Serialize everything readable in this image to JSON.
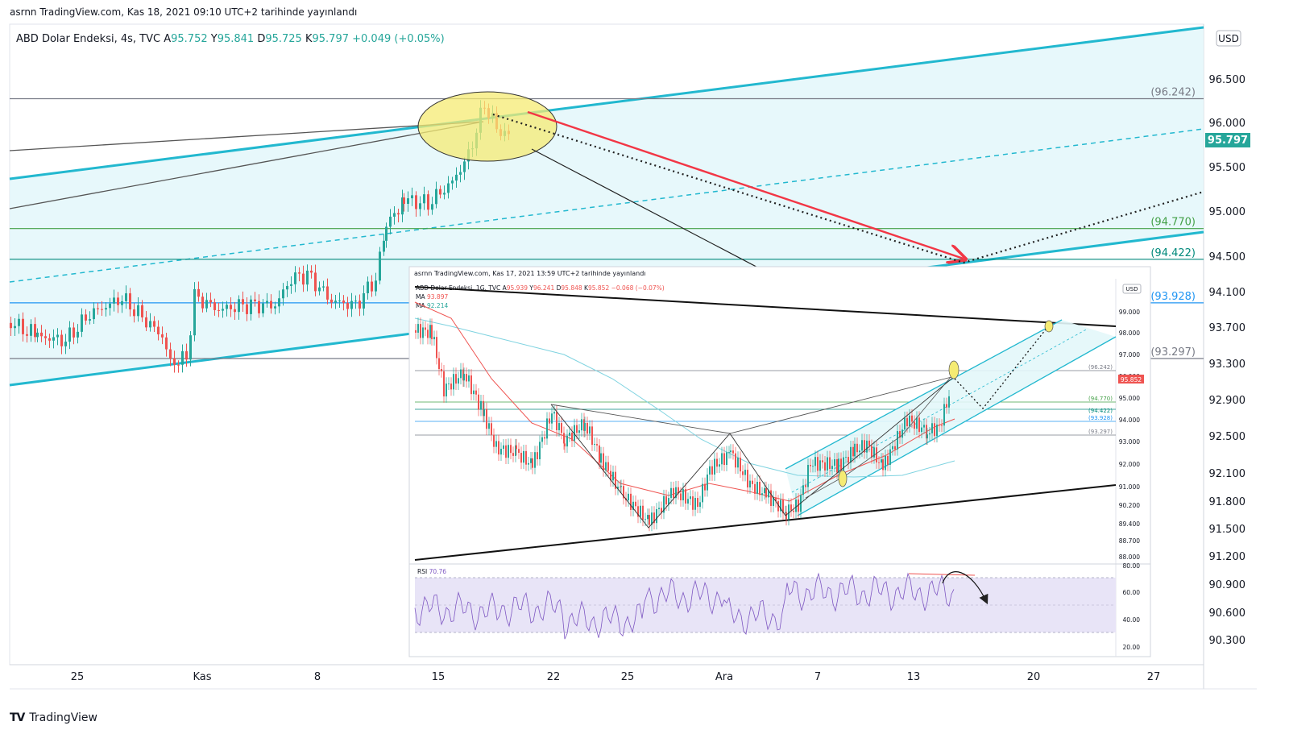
{
  "publish_line": "asrnn TradingView.com, Kas 18, 2021 09:10 UTC+2 tarihinde yayınlandı",
  "brand": {
    "logo": "TV",
    "name": "TradingView"
  },
  "chart_data": {
    "type": "candlestick",
    "legend": {
      "symbol": "ABD Dolar Endeksi, 4s, TVC",
      "values": [
        {
          "label": "A",
          "value": "95.752"
        },
        {
          "label": "Y",
          "value": "95.841"
        },
        {
          "label": "D",
          "value": "95.725"
        },
        {
          "label": "K",
          "value": "95.797"
        }
      ],
      "change": "+0.049 (+0.05%)"
    },
    "currency": "USD",
    "y_ticks": [
      "96.500",
      "96.000",
      "95.500",
      "95.000",
      "94.500",
      "94.100",
      "93.700",
      "93.300",
      "92.900",
      "92.500",
      "92.100",
      "91.800",
      "91.500",
      "91.200",
      "90.900",
      "90.600",
      "90.300"
    ],
    "x_ticks": [
      "25",
      "Kas",
      "8",
      "15",
      "22",
      "25",
      "Ara",
      "7",
      "13",
      "20",
      "27"
    ],
    "price_badge": "95.797",
    "levels": [
      {
        "label": "(96.242)",
        "value": 96.242,
        "color": "#787b86"
      },
      {
        "label": "(94.770)",
        "value": 94.77,
        "color": "#43a047"
      },
      {
        "label": "(94.422)",
        "value": 94.422,
        "color": "#00897b"
      },
      {
        "label": "(93.928)",
        "value": 93.928,
        "color": "#2196f3"
      },
      {
        "label": "(93.297)",
        "value": 93.297,
        "color": "#787b86"
      }
    ],
    "colors": {
      "up": "#26a69a",
      "down": "#ef5350",
      "channel": "#22b8cf",
      "arrow": "#f23645",
      "panel_bg": "#ffffff"
    },
    "inset": {
      "publish_line": "asrnn TradingView.com, Kas 17, 2021 13:59 UTC+2 tarihinde yayınlandı",
      "legend": {
        "symbol": "ABD Dolar Endeksi, 1G, TVC",
        "values": [
          {
            "label": "A",
            "value": "95.939"
          },
          {
            "label": "Y",
            "value": "96.241"
          },
          {
            "label": "D",
            "value": "95.848"
          },
          {
            "label": "K",
            "value": "95.852"
          }
        ],
        "change": "−0.068 (−0.07%)"
      },
      "ma_labels": [
        {
          "label": "MA",
          "value": "93.897"
        },
        {
          "label": "MA",
          "value": "92.214"
        }
      ],
      "currency": "USD",
      "price_badge": "95.852",
      "y_ticks": [
        "99.000",
        "98.000",
        "97.000",
        "96.000",
        "95.000",
        "94.000",
        "93.000",
        "92.000",
        "91.000",
        "90.200",
        "89.400",
        "88.700",
        "88.000"
      ],
      "levels": [
        {
          "label": "(96.242)",
          "value": 96.242,
          "color": "#787b86"
        },
        {
          "label": "(94.770)",
          "value": 94.77,
          "color": "#43a047"
        },
        {
          "label": "(94.422)",
          "value": 94.422,
          "color": "#00897b"
        },
        {
          "label": "(93.928)",
          "value": 93.928,
          "color": "#2196f3"
        },
        {
          "label": "(93.297)",
          "value": 93.297,
          "color": "#787b86"
        }
      ],
      "rsi": {
        "label": "RSI",
        "value": "70.76",
        "ticks": [
          "80.00",
          "60.00",
          "40.00",
          "20.00"
        ]
      }
    }
  }
}
